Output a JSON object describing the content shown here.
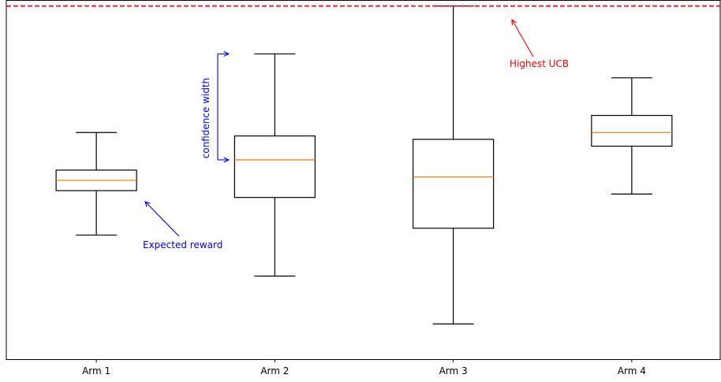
{
  "chart_data": {
    "type": "box",
    "categories": [
      "Arm 1",
      "Arm 2",
      "Arm 3",
      "Arm 4"
    ],
    "boxes": [
      {
        "name": "Arm 1",
        "whisker_low": 0.34,
        "q1": 0.47,
        "median": 0.5,
        "q3": 0.53,
        "whisker_high": 0.64
      },
      {
        "name": "Arm 2",
        "whisker_low": 0.22,
        "q1": 0.45,
        "median": 0.56,
        "q3": 0.63,
        "whisker_high": 0.87
      },
      {
        "name": "Arm 3",
        "whisker_low": 0.08,
        "q1": 0.36,
        "median": 0.51,
        "q3": 0.62,
        "whisker_high": 1.01
      },
      {
        "name": "Arm 4",
        "whisker_low": 0.46,
        "q1": 0.6,
        "median": 0.64,
        "q3": 0.69,
        "whisker_high": 0.8
      }
    ],
    "ylim": [
      0.0,
      1.0
    ],
    "y_ticks_visible": false,
    "highest_ucb": 1.01,
    "annotations": {
      "highest_ucb": "Highest UCB",
      "confidence_width": "confidence width",
      "expected_reward": "Expected reward"
    },
    "colors": {
      "box": "#000000",
      "median": "#ff7f0e",
      "ucb_line": "#ff0000",
      "annotation_blue": "#0000ff",
      "annotation_red": "#ff0000"
    }
  }
}
